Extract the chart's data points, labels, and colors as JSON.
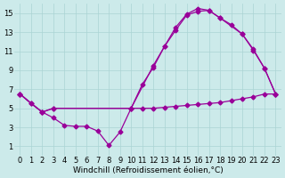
{
  "background_color": "#cceaea",
  "line_color": "#990099",
  "marker": "D",
  "markersize": 2.5,
  "linewidth": 0.9,
  "xlim": [
    -0.5,
    23.5
  ],
  "ylim": [
    0,
    16
  ],
  "xlabel": "Windchill (Refroidissement éolien,°C)",
  "xlabel_fontsize": 6.5,
  "xticks": [
    0,
    1,
    2,
    3,
    4,
    5,
    6,
    7,
    8,
    9,
    10,
    11,
    12,
    13,
    14,
    15,
    16,
    17,
    18,
    19,
    20,
    21,
    22,
    23
  ],
  "yticks": [
    1,
    3,
    5,
    7,
    9,
    11,
    13,
    15
  ],
  "tick_fontsize": 6,
  "grid_color": "#aad4d4",
  "curves": [
    {
      "x": [
        0,
        1,
        2,
        3,
        4,
        5,
        6,
        7,
        8,
        9,
        10,
        11,
        12,
        13,
        14,
        15,
        16,
        17,
        18,
        19,
        20,
        21,
        22,
        23
      ],
      "y": [
        6.5,
        5.5,
        4.6,
        4.0,
        3.2,
        3.1,
        3.1,
        2.6,
        1.1,
        2.5,
        5.0,
        5.0,
        5.0,
        5.1,
        5.2,
        5.3,
        5.4,
        5.5,
        5.6,
        5.8,
        6.0,
        6.2,
        6.5,
        6.5
      ]
    },
    {
      "x": [
        0,
        1,
        2,
        3,
        10,
        11,
        12,
        13,
        14,
        15,
        16,
        17,
        18,
        19,
        20,
        21,
        22,
        23
      ],
      "y": [
        6.5,
        5.5,
        4.6,
        5.0,
        5.0,
        7.5,
        9.3,
        11.5,
        13.2,
        14.8,
        15.2,
        15.3,
        14.5,
        13.8,
        12.8,
        11.2,
        9.2,
        6.5
      ]
    },
    {
      "x": [
        0,
        2,
        3,
        10,
        12,
        13,
        14,
        15,
        16,
        17,
        18,
        20,
        21,
        22,
        23
      ],
      "y": [
        6.5,
        4.6,
        5.0,
        5.0,
        9.5,
        11.5,
        13.5,
        14.9,
        15.5,
        15.3,
        14.5,
        12.8,
        11.1,
        9.2,
        6.5
      ]
    }
  ]
}
